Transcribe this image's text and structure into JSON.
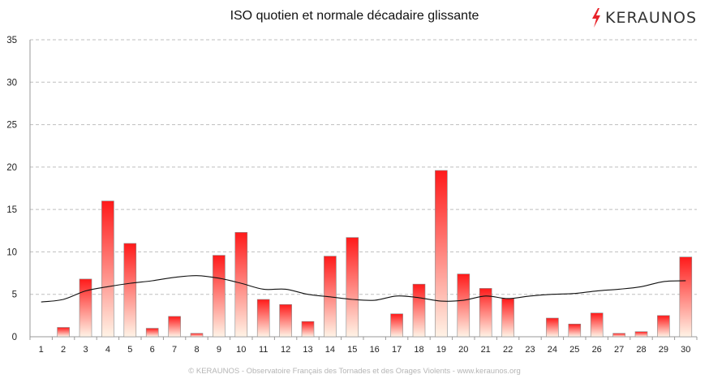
{
  "header": {
    "title": "ISO quotien et normale décadaire glissante",
    "logo_text": "KERAUNOS"
  },
  "footer": {
    "text": "© KERAUNOS - Observatoire Français des Tornades et des Orages Violents - www.keraunos.org"
  },
  "colors": {
    "bar_top": "#ff1a1a",
    "bar_bottom": "#fff3e6",
    "line": "#111111",
    "grid": "#bfbfbf",
    "logo_bolt": "#e8232a"
  },
  "chart_data": {
    "type": "bar",
    "title": "ISO quotien et normale décadaire glissante",
    "xlabel": "",
    "ylabel": "",
    "ylim": [
      0,
      35
    ],
    "yticks": [
      0,
      5,
      10,
      15,
      20,
      25,
      30,
      35
    ],
    "grid": true,
    "categories": [
      "1",
      "2",
      "3",
      "4",
      "5",
      "6",
      "7",
      "8",
      "9",
      "10",
      "11",
      "12",
      "13",
      "14",
      "15",
      "16",
      "17",
      "18",
      "19",
      "20",
      "21",
      "22",
      "23",
      "24",
      "25",
      "26",
      "27",
      "28",
      "29",
      "30"
    ],
    "series": [
      {
        "type": "bar",
        "values": [
          0,
          1.1,
          6.8,
          16.0,
          11.0,
          1.0,
          2.4,
          0.4,
          9.6,
          12.3,
          4.4,
          3.8,
          1.8,
          9.5,
          11.7,
          0,
          2.7,
          6.2,
          19.6,
          7.4,
          5.7,
          4.5,
          0,
          2.2,
          1.5,
          2.8,
          0.4,
          0.6,
          2.5,
          9.4
        ]
      },
      {
        "type": "line",
        "values": [
          4.1,
          4.4,
          5.4,
          5.9,
          6.3,
          6.6,
          7.0,
          7.2,
          6.9,
          6.3,
          5.6,
          5.6,
          5.0,
          4.7,
          4.4,
          4.3,
          4.8,
          4.6,
          4.2,
          4.3,
          4.8,
          4.5,
          4.8,
          5.0,
          5.1,
          5.4,
          5.6,
          5.9,
          6.5,
          6.6
        ]
      }
    ]
  }
}
